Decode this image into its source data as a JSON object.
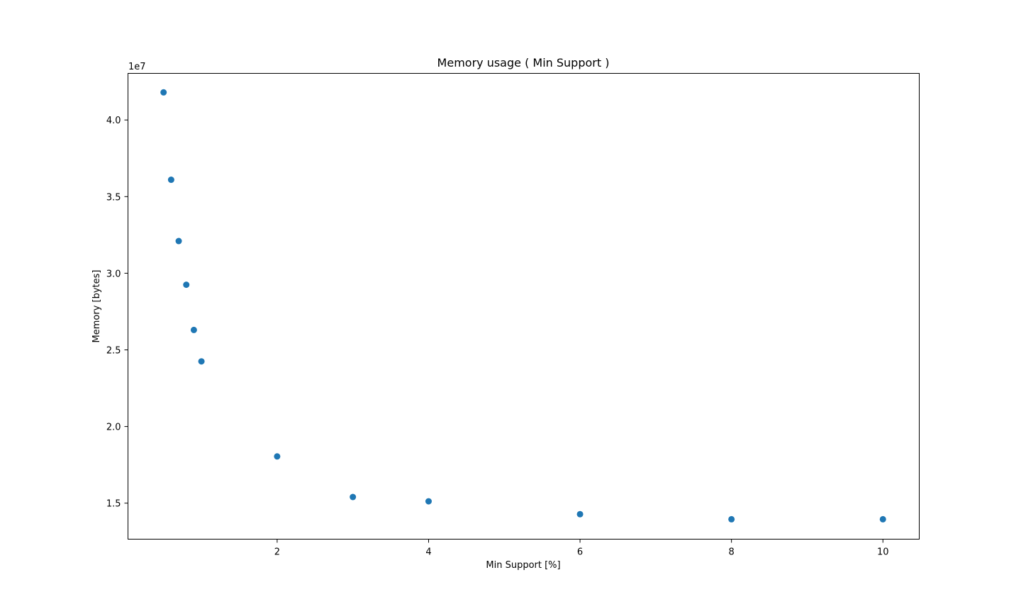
{
  "chart_data": {
    "type": "scatter",
    "title": "Memory usage ( Min Support )",
    "xlabel": "Min Support [%]",
    "ylabel": "Memory [bytes]",
    "y_offset_label": "1e7",
    "y_scale_factor": 10000000,
    "xlim": [
      0.03,
      10.48
    ],
    "ylim": [
      12650000,
      43040000
    ],
    "x_ticks": [
      2,
      4,
      6,
      8,
      10
    ],
    "y_ticks": [
      15000000,
      20000000,
      25000000,
      30000000,
      35000000,
      40000000
    ],
    "x_tick_labels": [
      "2",
      "4",
      "6",
      "8",
      "10"
    ],
    "y_tick_labels": [
      "1.5",
      "2.0",
      "2.5",
      "3.0",
      "3.5",
      "4.0"
    ],
    "grid": false,
    "marker_color": "#1f77b4",
    "series": [
      {
        "x": [
          0.5,
          0.6,
          0.7,
          0.8,
          0.9,
          1.0,
          2,
          3,
          4,
          6,
          8,
          10
        ],
        "y": [
          41800000,
          36100000,
          32100000,
          29250000,
          26300000,
          24250000,
          18050000,
          15400000,
          15120000,
          14280000,
          13950000,
          13950000
        ]
      }
    ]
  }
}
